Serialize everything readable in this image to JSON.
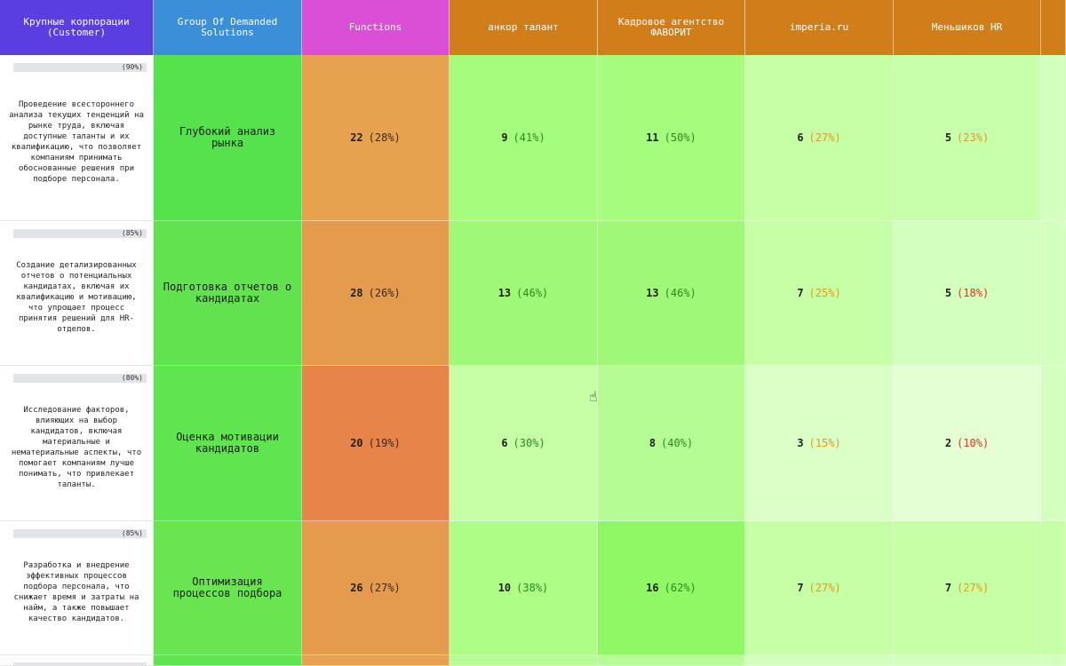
{
  "headers": [
    "Крупные корпорации (Customer)",
    "Group Of Demanded Solutions",
    "Functions",
    "анкор талант",
    "Кадровое агентство ФАВОРИТ",
    "imperia.ru",
    "Меньшиков HR",
    ""
  ],
  "rows": [
    {
      "bar_pct": "(90%)",
      "description": "Проведение всестороннего анализа текущих тенденций на рынке труда, включая доступные таланты и их квалификацию, что позволяет компаниям принимать обоснованные решения при подборе персонала.",
      "solution": "Глубокий анализ рынка",
      "functions": {
        "num": "22",
        "pct": "(28%)"
      },
      "vals": [
        {
          "num": "9",
          "pct": "(41%)"
        },
        {
          "num": "11",
          "pct": "(50%)"
        },
        {
          "num": "6",
          "pct": "(27%)"
        },
        {
          "num": "5",
          "pct": "(23%)"
        }
      ]
    },
    {
      "bar_pct": "(85%)",
      "description": "Создание детализированных отчетов о потенциальных кандидатах, включая их квалификацию и мотивацию, что упрощает процесс принятия решений для HR-отделов.",
      "solution": "Подготовка отчетов о кандидатах",
      "functions": {
        "num": "28",
        "pct": "(26%)"
      },
      "vals": [
        {
          "num": "13",
          "pct": "(46%)"
        },
        {
          "num": "13",
          "pct": "(46%)"
        },
        {
          "num": "7",
          "pct": "(25%)"
        },
        {
          "num": "5",
          "pct": "(18%)"
        }
      ]
    },
    {
      "bar_pct": "(80%)",
      "description": "Исследование факторов, влияющих на выбор кандидатов, включая материальные и нематериальные аспекты, что помогает компаниям лучше понимать, что привлекает таланты.",
      "solution": "Оценка мотивации кандидатов",
      "functions": {
        "num": "20",
        "pct": "(19%)"
      },
      "vals": [
        {
          "num": "6",
          "pct": "(30%)"
        },
        {
          "num": "8",
          "pct": "(40%)"
        },
        {
          "num": "3",
          "pct": "(15%)"
        },
        {
          "num": "2",
          "pct": "(10%)"
        }
      ]
    },
    {
      "bar_pct": "(85%)",
      "description": "Разработка и внедрение эффективных процессов подбора персонала, что снижает время и затраты на найм, а также повышает качество кандидатов.",
      "solution": "Оптимизация процессов подбора",
      "functions": {
        "num": "26",
        "pct": "(27%)"
      },
      "vals": [
        {
          "num": "10",
          "pct": "(38%)"
        },
        {
          "num": "16",
          "pct": "(62%)"
        },
        {
          "num": "7",
          "pct": "(27%)"
        },
        {
          "num": "7",
          "pct": "(27%)"
        }
      ]
    }
  ],
  "colors": {
    "solutions": [
      "#56e24d",
      "#61e24e",
      "#60e450",
      "#6ae552"
    ],
    "functions": [
      "#e6a24f",
      "#e59b4e",
      "#e6844a",
      "#e59b4e"
    ],
    "values": [
      [
        "#a6fd7d",
        "#a6fd7d",
        "#c6ffa6",
        "#c8ffaa",
        "#d3ffbf"
      ],
      [
        "#9ff976",
        "#9ff976",
        "#c6ffa5",
        "#d3ffbf",
        "#d3ffbf"
      ],
      [
        "#c6ffa6",
        "#b5fd92",
        "#daffc7",
        "#e3ffd3",
        "#d3ffbf"
      ],
      [
        "#adfd87",
        "#8ef964",
        "#c6ffa6",
        "#c6ffa6",
        "#c6ffa6"
      ]
    ],
    "pct_classes": [
      [
        "g",
        "g",
        "o",
        "o"
      ],
      [
        "g",
        "g",
        "o",
        "r"
      ],
      [
        "g",
        "g",
        "o",
        "r"
      ],
      [
        "g",
        "g",
        "o",
        "o"
      ]
    ],
    "functions_pct_class": "d"
  }
}
